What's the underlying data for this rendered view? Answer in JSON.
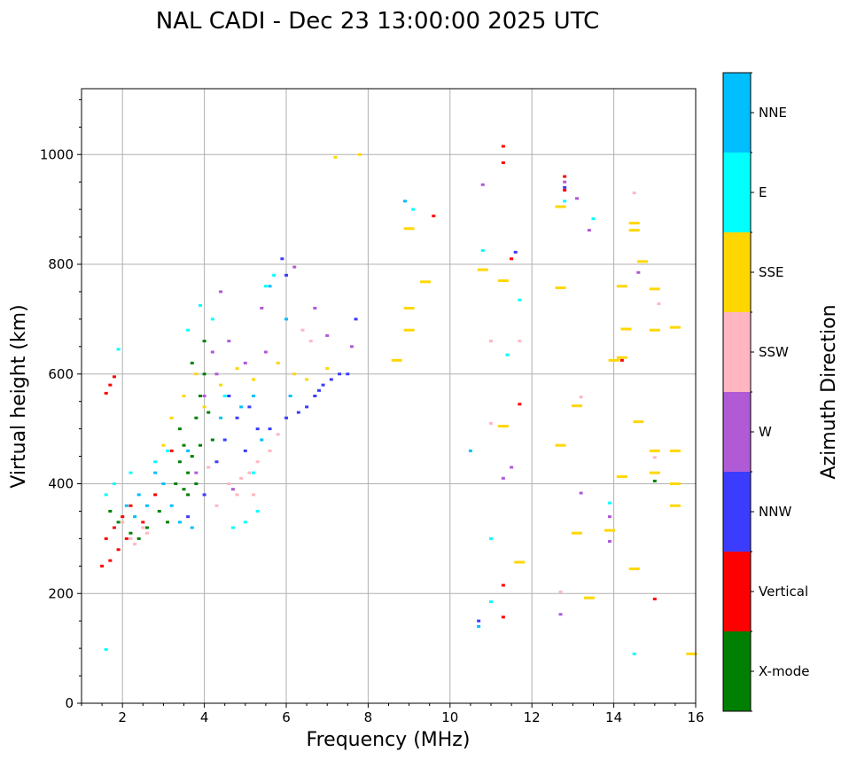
{
  "chart_data": {
    "type": "scatter",
    "title": "NAL CADI - Dec 23 13:00:00 2025 UTC",
    "xlabel": "Frequency (MHz)",
    "ylabel": "Virtual height (km)",
    "xlim": [
      1,
      16
    ],
    "ylim": [
      0,
      1120
    ],
    "x_ticks": [
      2,
      4,
      6,
      8,
      10,
      12,
      14,
      16
    ],
    "y_ticks": [
      0,
      200,
      400,
      600,
      800,
      1000
    ],
    "grid": true,
    "colorbar": {
      "title": "Azimuth Direction",
      "categories": [
        "X-mode",
        "Vertical",
        "NNW",
        "W",
        "SSW",
        "SSE",
        "E",
        "NNE"
      ],
      "colors": [
        "#008000",
        "#ff0000",
        "#3c3cff",
        "#b05ad6",
        "#ffb6c1",
        "#ffd700",
        "#00ffff",
        "#00bfff"
      ]
    },
    "series": [
      {
        "name": "X-mode",
        "points": [
          [
            3.6,
            420
          ],
          [
            3.8,
            400
          ],
          [
            3.9,
            560
          ],
          [
            4.0,
            660
          ],
          [
            3.4,
            500
          ],
          [
            3.5,
            470
          ],
          [
            3.7,
            620
          ],
          [
            4.2,
            480
          ],
          [
            3.6,
            380
          ],
          [
            3.4,
            440
          ],
          [
            3.8,
            520
          ],
          [
            4.0,
            600
          ],
          [
            2.9,
            350
          ],
          [
            3.1,
            330
          ],
          [
            3.3,
            400
          ],
          [
            2.6,
            320
          ],
          [
            2.4,
            300
          ],
          [
            3.7,
            450
          ],
          [
            4.1,
            530
          ],
          [
            15.0,
            405
          ],
          [
            1.7,
            350
          ],
          [
            1.9,
            330
          ],
          [
            2.2,
            310
          ],
          [
            3.5,
            390
          ],
          [
            3.9,
            470
          ]
        ]
      },
      {
        "name": "Vertical",
        "points": [
          [
            1.6,
            565
          ],
          [
            1.7,
            580
          ],
          [
            1.8,
            595
          ],
          [
            1.6,
            300
          ],
          [
            1.8,
            320
          ],
          [
            2.0,
            340
          ],
          [
            2.2,
            360
          ],
          [
            1.9,
            280
          ],
          [
            2.5,
            330
          ],
          [
            12.8,
            960
          ],
          [
            12.8,
            935
          ],
          [
            11.3,
            1015
          ],
          [
            11.3,
            985
          ],
          [
            11.5,
            810
          ],
          [
            11.7,
            545
          ],
          [
            9.6,
            888
          ],
          [
            11.3,
            215
          ],
          [
            11.3,
            157
          ],
          [
            14.2,
            625
          ],
          [
            15.0,
            190
          ],
          [
            1.7,
            260
          ],
          [
            2.1,
            300
          ],
          [
            2.8,
            380
          ],
          [
            3.2,
            460
          ],
          [
            1.5,
            250
          ]
        ]
      },
      {
        "name": "NNW",
        "points": [
          [
            4.5,
            480
          ],
          [
            4.8,
            520
          ],
          [
            5.0,
            460
          ],
          [
            5.3,
            500
          ],
          [
            6.5,
            540
          ],
          [
            6.7,
            560
          ],
          [
            6.9,
            580
          ],
          [
            7.1,
            590
          ],
          [
            6.3,
            530
          ],
          [
            7.3,
            600
          ],
          [
            7.5,
            600
          ],
          [
            4.3,
            440
          ],
          [
            4.0,
            380
          ],
          [
            3.6,
            340
          ],
          [
            5.6,
            500
          ],
          [
            6.0,
            520
          ],
          [
            5.9,
            810
          ],
          [
            6.0,
            780
          ],
          [
            7.7,
            700
          ],
          [
            12.8,
            940
          ],
          [
            10.7,
            150
          ],
          [
            11.6,
            822
          ],
          [
            4.6,
            560
          ],
          [
            5.1,
            540
          ],
          [
            6.8,
            570
          ]
        ]
      },
      {
        "name": "W",
        "points": [
          [
            4.2,
            640
          ],
          [
            4.3,
            600
          ],
          [
            4.6,
            660
          ],
          [
            5.0,
            620
          ],
          [
            5.5,
            640
          ],
          [
            6.2,
            795
          ],
          [
            6.7,
            720
          ],
          [
            7.0,
            670
          ],
          [
            7.6,
            650
          ],
          [
            4.0,
            560
          ],
          [
            3.8,
            420
          ],
          [
            4.4,
            750
          ],
          [
            5.4,
            720
          ],
          [
            10.8,
            945
          ],
          [
            12.8,
            950
          ],
          [
            13.1,
            920
          ],
          [
            13.4,
            862
          ],
          [
            14.6,
            785
          ],
          [
            13.2,
            383
          ],
          [
            11.3,
            410
          ],
          [
            11.5,
            430
          ],
          [
            13.9,
            340
          ],
          [
            13.9,
            295
          ],
          [
            12.7,
            162
          ],
          [
            4.7,
            390
          ]
        ]
      },
      {
        "name": "SSW",
        "points": [
          [
            2.2,
            300
          ],
          [
            2.3,
            290
          ],
          [
            2.5,
            320
          ],
          [
            4.8,
            380
          ],
          [
            5.1,
            420
          ],
          [
            5.3,
            440
          ],
          [
            5.6,
            460
          ],
          [
            4.6,
            400
          ],
          [
            4.3,
            360
          ],
          [
            6.4,
            680
          ],
          [
            6.6,
            660
          ],
          [
            13.2,
            558
          ],
          [
            11.0,
            510
          ],
          [
            11.0,
            660
          ],
          [
            11.7,
            660
          ],
          [
            14.5,
            930
          ],
          [
            15.0,
            448
          ],
          [
            15.1,
            728
          ],
          [
            12.7,
            203
          ],
          [
            4.9,
            410
          ],
          [
            5.2,
            380
          ],
          [
            2.6,
            310
          ],
          [
            2.0,
            330
          ],
          [
            4.1,
            430
          ],
          [
            5.8,
            490
          ]
        ]
      },
      {
        "name": "SSE",
        "points": [
          [
            3.0,
            470
          ],
          [
            3.2,
            520
          ],
          [
            3.5,
            560
          ],
          [
            3.8,
            600
          ],
          [
            4.0,
            540
          ],
          [
            4.4,
            580
          ],
          [
            4.8,
            610
          ],
          [
            5.2,
            590
          ],
          [
            5.8,
            620
          ],
          [
            6.2,
            600
          ],
          [
            6.5,
            590
          ],
          [
            7.0,
            610
          ],
          [
            7.8,
            1000
          ],
          [
            7.2,
            995
          ],
          [
            9.0,
            865
          ],
          [
            9.0,
            720
          ],
          [
            9.0,
            680
          ],
          [
            8.7,
            625
          ],
          [
            9.4,
            768
          ],
          [
            10.8,
            790
          ],
          [
            11.3,
            770
          ],
          [
            11.3,
            505
          ],
          [
            12.7,
            905
          ],
          [
            12.7,
            757
          ],
          [
            13.1,
            542
          ],
          [
            13.1,
            310
          ],
          [
            12.7,
            470
          ],
          [
            11.7,
            257
          ],
          [
            13.4,
            192
          ],
          [
            14.2,
            760
          ],
          [
            14.5,
            875
          ],
          [
            14.5,
            862
          ],
          [
            14.6,
            513
          ],
          [
            14.2,
            630
          ],
          [
            14.0,
            625
          ],
          [
            13.9,
            315
          ],
          [
            14.5,
            245
          ],
          [
            15.0,
            755
          ],
          [
            15.0,
            680
          ],
          [
            15.0,
            460
          ],
          [
            15.0,
            420
          ],
          [
            15.5,
            460
          ],
          [
            15.5,
            400
          ],
          [
            15.5,
            360
          ],
          [
            15.5,
            685
          ],
          [
            15.9,
            90
          ],
          [
            14.7,
            805
          ],
          [
            14.3,
            682
          ],
          [
            14.2,
            413
          ]
        ]
      },
      {
        "name": "E",
        "points": [
          [
            1.9,
            645
          ],
          [
            1.6,
            380
          ],
          [
            1.8,
            400
          ],
          [
            2.2,
            420
          ],
          [
            2.8,
            440
          ],
          [
            3.1,
            460
          ],
          [
            3.6,
            680
          ],
          [
            3.9,
            725
          ],
          [
            4.2,
            700
          ],
          [
            5.5,
            760
          ],
          [
            5.7,
            780
          ],
          [
            5.2,
            420
          ],
          [
            5.0,
            330
          ],
          [
            5.3,
            350
          ],
          [
            4.7,
            320
          ],
          [
            4.5,
            560
          ],
          [
            9.1,
            900
          ],
          [
            10.8,
            825
          ],
          [
            11.0,
            185
          ],
          [
            11.0,
            300
          ],
          [
            11.4,
            635
          ],
          [
            11.7,
            735
          ],
          [
            13.5,
            883
          ],
          [
            13.9,
            365
          ],
          [
            14.5,
            90
          ],
          [
            12.8,
            915
          ],
          [
            1.6,
            98
          ]
        ]
      },
      {
        "name": "NNE",
        "points": [
          [
            2.1,
            360
          ],
          [
            2.4,
            380
          ],
          [
            2.6,
            360
          ],
          [
            3.0,
            400
          ],
          [
            3.2,
            360
          ],
          [
            3.7,
            320
          ],
          [
            3.4,
            330
          ],
          [
            5.6,
            760
          ],
          [
            6.0,
            700
          ],
          [
            5.2,
            560
          ],
          [
            4.9,
            540
          ],
          [
            8.9,
            915
          ],
          [
            10.7,
            140
          ],
          [
            10.5,
            460
          ],
          [
            2.8,
            420
          ],
          [
            3.6,
            460
          ],
          [
            4.4,
            520
          ],
          [
            5.4,
            480
          ],
          [
            6.1,
            560
          ],
          [
            2.3,
            340
          ]
        ]
      }
    ]
  }
}
